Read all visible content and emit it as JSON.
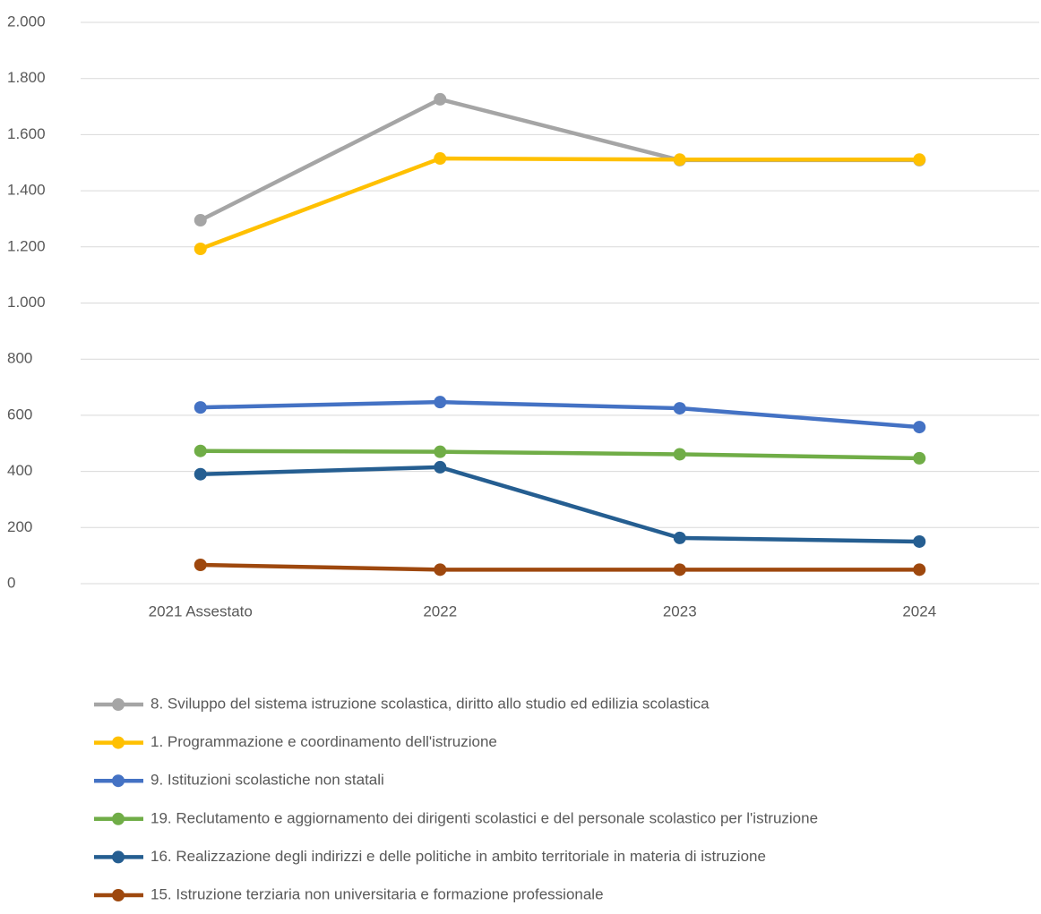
{
  "chart_data": {
    "type": "line",
    "categories": [
      "2021 Assestato",
      "2022",
      "2023",
      "2024"
    ],
    "series": [
      {
        "name": "8. Sviluppo del sistema istruzione scolastica, diritto allo studio ed edilizia scolastica",
        "color": "#a5a5a5",
        "values": [
          1295,
          1726,
          1509,
          1509
        ]
      },
      {
        "name": "1. Programmazione e coordinamento dell'istruzione",
        "color": "#ffc000",
        "values": [
          1193,
          1515,
          1511,
          1511
        ]
      },
      {
        "name": "9. Istituzioni scolastiche non statali",
        "color": "#4472c4",
        "values": [
          628,
          647,
          625,
          558
        ]
      },
      {
        "name": "19. Reclutamento e aggiornamento dei dirigenti scolastici e del personale scolastico per l'istruzione",
        "color": "#70ad47",
        "values": [
          473,
          470,
          461,
          447
        ]
      },
      {
        "name": "16. Realizzazione degli indirizzi e delle politiche in ambito territoriale in materia di istruzione",
        "color": "#255e91",
        "values": [
          390,
          415,
          163,
          150
        ]
      },
      {
        "name": "15. Istruzione terziaria non universitaria e formazione professionale",
        "color": "#9e480e",
        "values": [
          67,
          50,
          50,
          50
        ]
      }
    ],
    "ylim": [
      0,
      2000
    ],
    "yticks": [
      0,
      200,
      400,
      600,
      800,
      {
        "value": 1000,
        "label": "1.000"
      },
      {
        "value": 1200,
        "label": "1.200"
      },
      {
        "value": 1400,
        "label": "1.400"
      },
      {
        "value": 1600,
        "label": "1.600"
      },
      {
        "value": 1800,
        "label": "1.800"
      },
      {
        "value": 2000,
        "label": "2.000"
      }
    ],
    "grid": true,
    "legend": "bottom"
  }
}
